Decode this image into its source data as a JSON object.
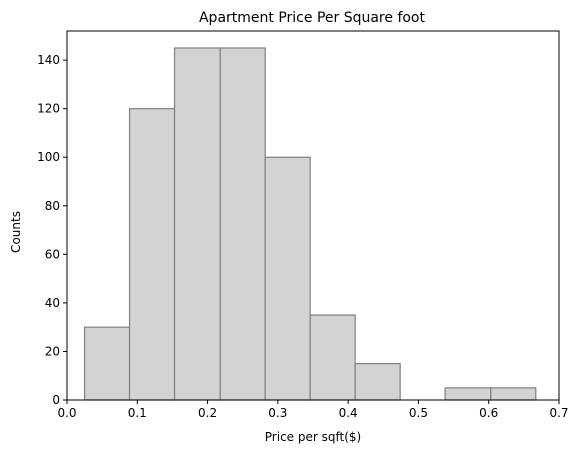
{
  "chart_data": {
    "type": "bar",
    "title": "Apartment Price Per Square foot",
    "xlabel": "Price per sqft($)",
    "ylabel": "Counts",
    "xlim": [
      0.0,
      0.7
    ],
    "ylim": [
      0,
      152
    ],
    "xticks": [
      0.0,
      0.1,
      0.2,
      0.3,
      0.4,
      0.5,
      0.6,
      0.7
    ],
    "xtick_labels": [
      "0.0",
      "0.1",
      "0.2",
      "0.3",
      "0.4",
      "0.5",
      "0.6",
      "0.7"
    ],
    "yticks": [
      0,
      20,
      40,
      60,
      80,
      100,
      120,
      140
    ],
    "ytick_labels": [
      "0",
      "20",
      "40",
      "60",
      "80",
      "100",
      "120",
      "140"
    ],
    "bin_edges": [
      0.025,
      0.089,
      0.153,
      0.218,
      0.282,
      0.346,
      0.41,
      0.474,
      0.538,
      0.603,
      0.667
    ],
    "counts": [
      30,
      120,
      145,
      145,
      100,
      35,
      15,
      0,
      5,
      5
    ],
    "grid": false,
    "colors": {
      "bar_fill": "#d3d3d3",
      "bar_edge": "#808080"
    }
  }
}
